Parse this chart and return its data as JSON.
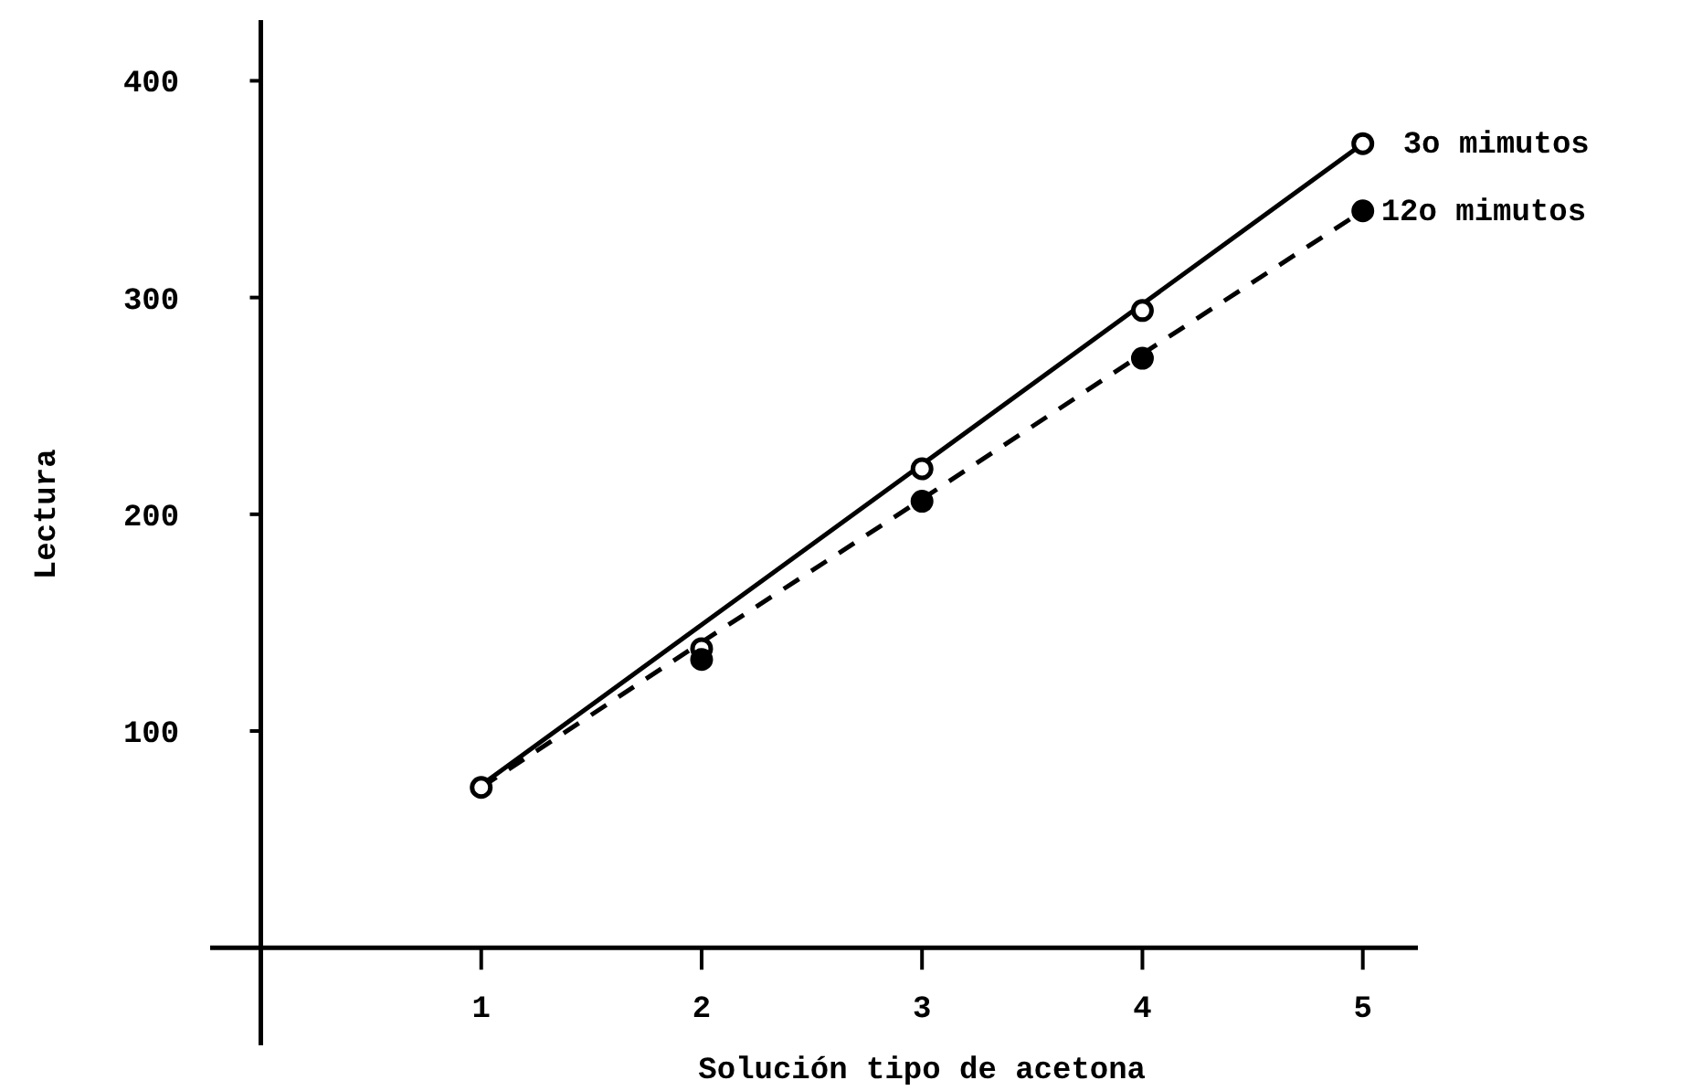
{
  "chart_data": {
    "type": "scatter",
    "xlabel": "Solución tipo de acetona",
    "ylabel": "Lectura",
    "xlim": [
      -0.23,
      5.25
    ],
    "ylim": [
      -45,
      428
    ],
    "xticks": [
      1,
      2,
      3,
      4,
      5
    ],
    "yticks": [
      100,
      200,
      300,
      400
    ],
    "grid": false,
    "marker": "circle",
    "x": [
      1,
      2,
      3,
      4,
      5
    ],
    "series": [
      {
        "type": "line",
        "values": [
          75,
          149,
          223,
          297,
          371
        ],
        "color": "#000000",
        "line_style": "solid",
        "marker": "none"
      },
      {
        "type": "line",
        "values": [
          74,
          141,
          207,
          274,
          340
        ],
        "color": "#000000",
        "line_style": "dashed",
        "marker": "none"
      },
      {
        "name": "3o mimutos",
        "values": [
          74,
          138,
          221,
          294,
          371
        ],
        "color": "#000000"
      },
      {
        "name": "12o mimutos",
        "values": [
          null,
          133,
          206,
          272,
          340
        ],
        "color": "#000000"
      }
    ]
  }
}
